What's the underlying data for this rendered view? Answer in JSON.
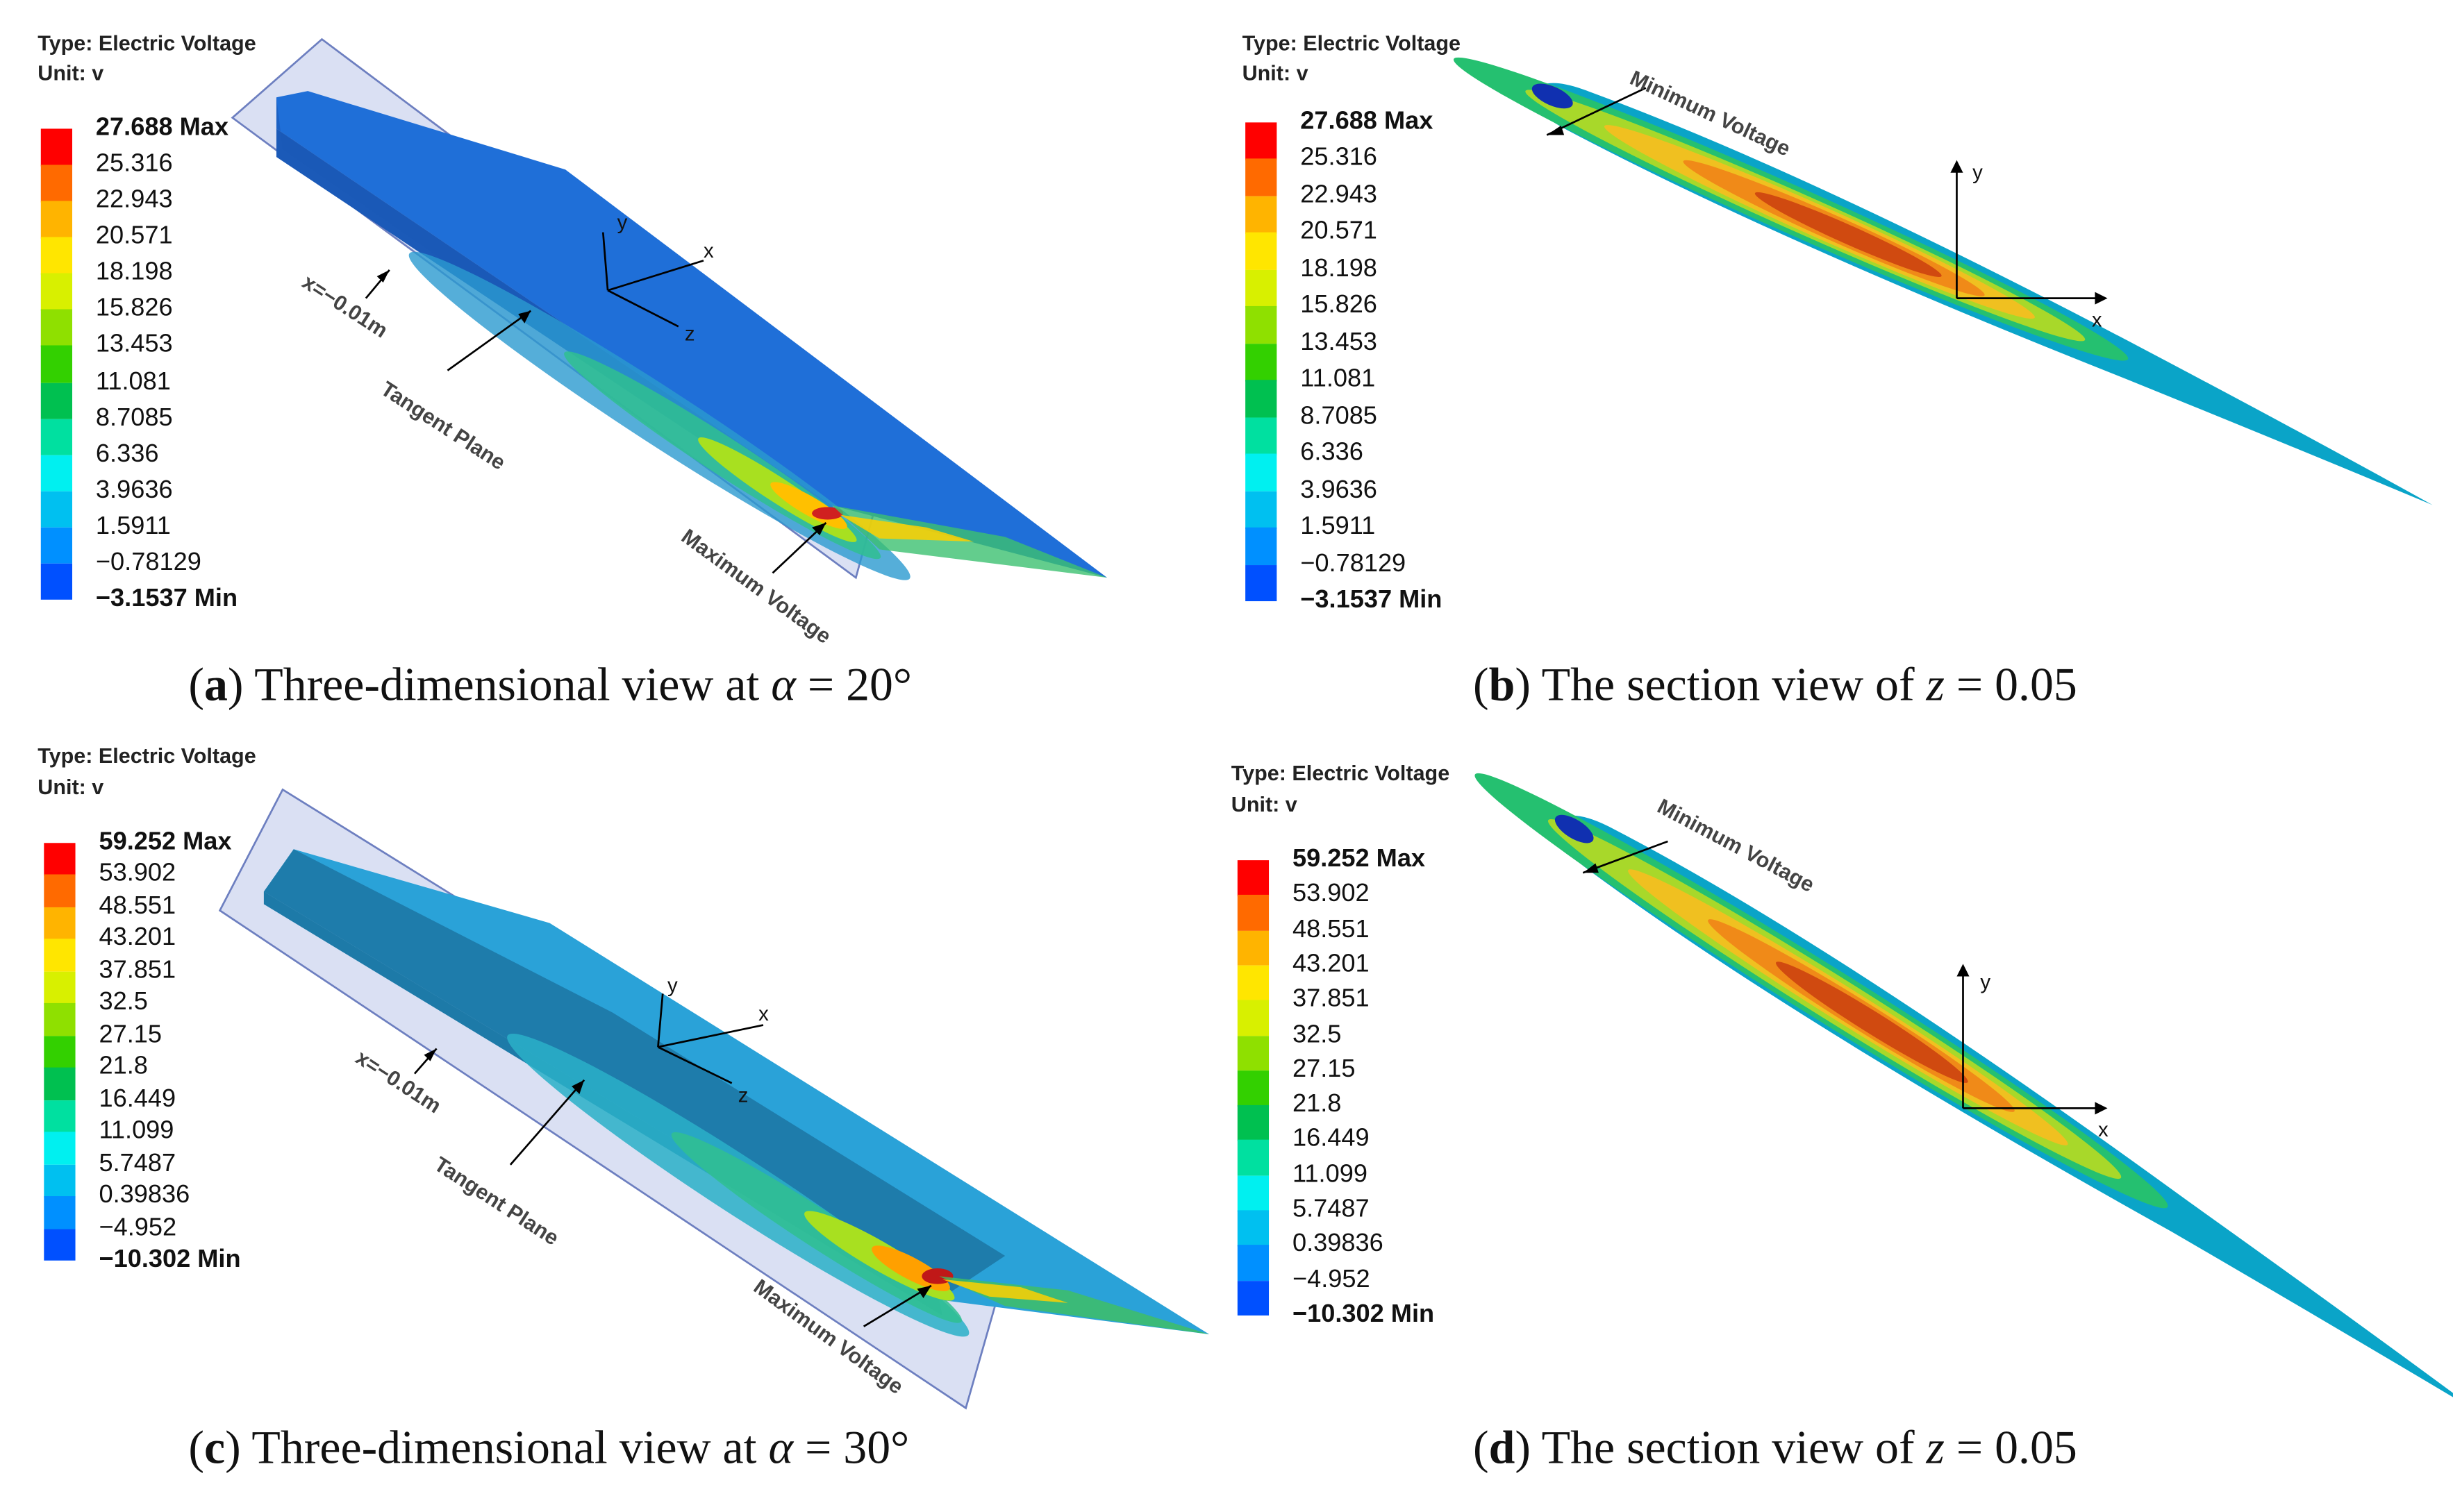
{
  "panels": [
    {
      "id": "a",
      "header": {
        "type": "Type: Electric Voltage",
        "unit": "Unit: v"
      },
      "legend": [
        "27.688 Max",
        "25.316",
        "22.943",
        "20.571",
        "18.198",
        "15.826",
        "13.453",
        "11.081",
        "8.7085",
        "6.336",
        "3.9636",
        "1.5911",
        "−0.78129",
        "−3.1537 Min"
      ],
      "annotations": {
        "x_plane": "x=−0.01m",
        "tangent": "Tangent Plane",
        "max": "Maximum Voltage"
      },
      "axes": {
        "y": "y",
        "x": "x",
        "z": "z"
      },
      "caption": {
        "letter": "a",
        "text": "Three-dimensional view at",
        "var": "α",
        "rest": " = 20°"
      }
    },
    {
      "id": "b",
      "header": {
        "type": "Type: Electric Voltage",
        "unit": "Unit: v"
      },
      "legend": [
        "27.688 Max",
        "25.316",
        "22.943",
        "20.571",
        "18.198",
        "15.826",
        "13.453",
        "11.081",
        "8.7085",
        "6.336",
        "3.9636",
        "1.5911",
        "−0.78129",
        "−3.1537 Min"
      ],
      "annotations": {
        "min": "Minimum Voltage"
      },
      "axes": {
        "y": "y",
        "x": "x"
      },
      "caption": {
        "letter": "b",
        "text": "The section view of",
        "var": "z",
        "rest": " = 0.05"
      }
    },
    {
      "id": "c",
      "header": {
        "type": "Type: Electric Voltage",
        "unit": "Unit: v"
      },
      "legend": [
        "59.252 Max",
        "53.902",
        "48.551",
        "43.201",
        "37.851",
        "32.5",
        "27.15",
        "21.8",
        "16.449",
        "11.099",
        "5.7487",
        "0.39836",
        "−4.952",
        "−10.302 Min"
      ],
      "annotations": {
        "x_plane": "x=−0.01m",
        "tangent": "Tangent Plane",
        "max": "Maximum Voltage"
      },
      "axes": {
        "y": "y",
        "x": "x",
        "z": "z"
      },
      "caption": {
        "letter": "c",
        "text": "Three-dimensional view at",
        "var": "α",
        "rest": " = 30°"
      }
    },
    {
      "id": "d",
      "header": {
        "type": "Type: Electric Voltage",
        "unit": "Unit: v"
      },
      "legend": [
        "59.252 Max",
        "53.902",
        "48.551",
        "43.201",
        "37.851",
        "32.5",
        "27.15",
        "21.8",
        "16.449",
        "11.099",
        "5.7487",
        "0.39836",
        "−4.952",
        "−10.302 Min"
      ],
      "annotations": {
        "min": "Minimum Voltage"
      },
      "axes": {
        "y": "y",
        "x": "x"
      },
      "caption": {
        "letter": "d",
        "text": "The section view of",
        "var": "z",
        "rest": " = 0.05"
      }
    }
  ],
  "colors": {
    "scale": [
      "#ff0000",
      "#ff6a00",
      "#ffb400",
      "#ffe600",
      "#d8f000",
      "#8fe000",
      "#33d000",
      "#00c050",
      "#00e0a0",
      "#00f0f0",
      "#00c0f0",
      "#0090ff",
      "#0050ff",
      "#0000e0"
    ],
    "body_a": "#1f6fd8",
    "body_c": "#2aa2d8",
    "plane": "#c7d2ee"
  }
}
